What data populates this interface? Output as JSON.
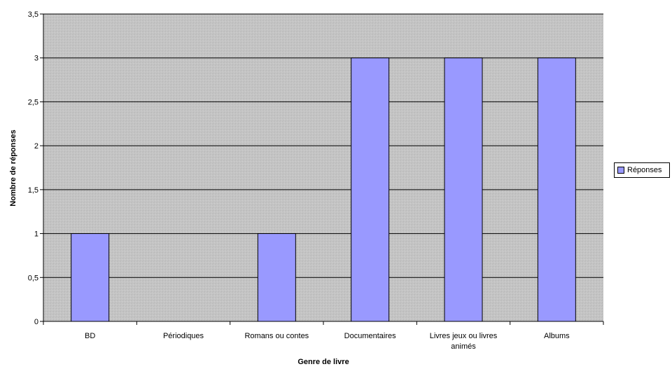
{
  "chart_data": {
    "type": "bar",
    "categories": [
      "BD",
      "Périodiques",
      "Romans ou contes",
      "Documentaires",
      "Livres jeux ou livres animés",
      "Albums"
    ],
    "series": [
      {
        "name": "Réponses",
        "values": [
          1,
          0,
          1,
          3,
          3,
          3
        ]
      }
    ],
    "y_ticks": [
      "0",
      "0,5",
      "1",
      "1,5",
      "2",
      "2,5",
      "3",
      "3,5"
    ],
    "xlabel": "Genre de livre",
    "ylabel": "Nombre de réponses",
    "ylim": [
      0,
      3.5
    ],
    "grid": true,
    "legend_position": "right",
    "colors": {
      "bar": "#9999ff",
      "bar_border": "#000000",
      "plot_background": "#c0c0c0",
      "gridline": "#000000"
    }
  }
}
